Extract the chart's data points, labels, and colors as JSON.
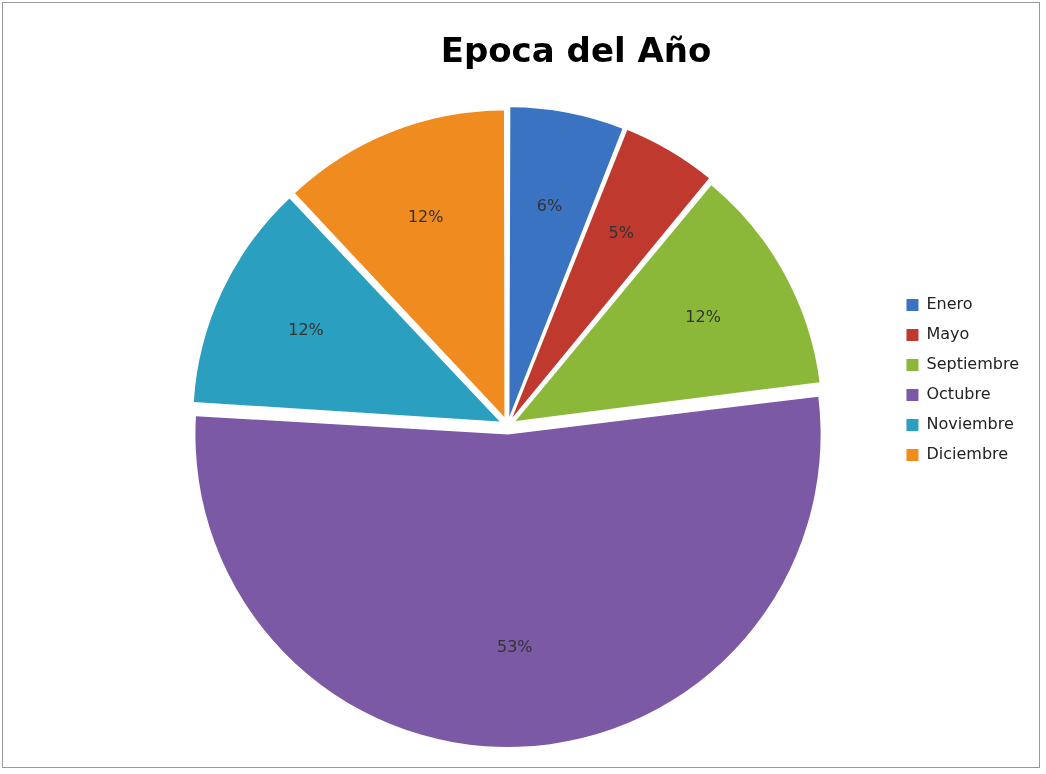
{
  "chart_data": {
    "type": "pie",
    "title": "Epoca del Año",
    "categories": [
      "Enero",
      "Mayo",
      "Septiembre",
      "Octubre",
      "Noviembre",
      "Diciembre"
    ],
    "values": [
      6,
      5,
      12,
      53,
      12,
      12
    ],
    "value_labels": [
      "6%",
      "5%",
      "12%",
      "53%",
      "12%",
      "12%"
    ],
    "colors": [
      "#3a73c2",
      "#c0392f",
      "#8cb83a",
      "#7b59a5",
      "#2b9fbf",
      "#ef8b1f"
    ],
    "legend": "right"
  }
}
